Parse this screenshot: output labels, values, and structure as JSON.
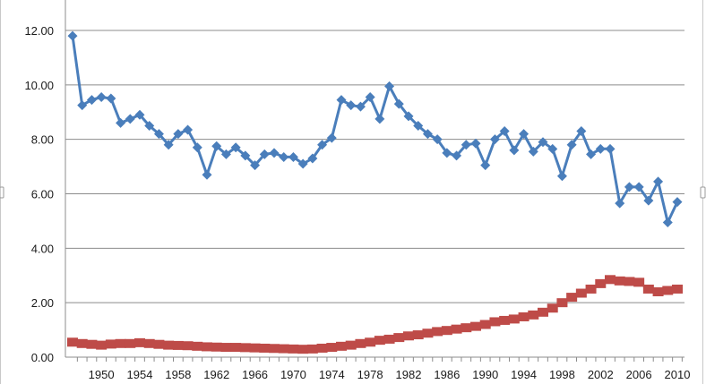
{
  "chart_data": {
    "type": "line",
    "title": "",
    "xlabel": "",
    "ylabel": "",
    "ylim": [
      0,
      12
    ],
    "y_ticks": [
      "0.00",
      "2.00",
      "4.00",
      "6.00",
      "8.00",
      "10.00",
      "12.00"
    ],
    "x_tick_labels": [
      "1950",
      "1954",
      "1958",
      "1962",
      "1966",
      "1970",
      "1974",
      "1978",
      "1982",
      "1986",
      "1990",
      "1994",
      "1998",
      "2002",
      "2006",
      "2010"
    ],
    "x": [
      1947,
      1948,
      1949,
      1950,
      1951,
      1952,
      1953,
      1954,
      1955,
      1956,
      1957,
      1958,
      1959,
      1960,
      1961,
      1962,
      1963,
      1964,
      1965,
      1966,
      1967,
      1968,
      1969,
      1970,
      1971,
      1972,
      1973,
      1974,
      1975,
      1976,
      1977,
      1978,
      1979,
      1980,
      1981,
      1982,
      1983,
      1984,
      1985,
      1986,
      1987,
      1988,
      1989,
      1990,
      1991,
      1992,
      1993,
      1994,
      1995,
      1996,
      1997,
      1998,
      1999,
      2000,
      2001,
      2002,
      2003,
      2004,
      2005,
      2006,
      2007,
      2008,
      2009,
      2010
    ],
    "grid": true,
    "legend": "none",
    "series": [
      {
        "color": "#4a7ebb",
        "marker": "diamond",
        "values": [
          11.8,
          9.25,
          9.45,
          9.55,
          9.5,
          8.6,
          8.75,
          8.9,
          8.5,
          8.2,
          7.8,
          8.2,
          8.35,
          7.7,
          6.7,
          7.75,
          7.45,
          7.7,
          7.4,
          7.05,
          7.45,
          7.5,
          7.35,
          7.35,
          7.1,
          7.3,
          7.8,
          8.05,
          9.45,
          9.25,
          9.2,
          9.55,
          8.75,
          9.95,
          9.3,
          8.85,
          8.5,
          8.2,
          8.0,
          7.5,
          7.4,
          7.8,
          7.85,
          7.05,
          8.0,
          8.3,
          7.6,
          8.2,
          7.55,
          7.9,
          7.65,
          6.65,
          7.8,
          8.3,
          7.45,
          7.65,
          7.65,
          5.65,
          6.25,
          6.25,
          5.75,
          6.45,
          4.95,
          5.7
        ]
      },
      {
        "color": "#be4b48",
        "marker": "square",
        "values": [
          0.55,
          0.5,
          0.47,
          0.44,
          0.48,
          0.5,
          0.5,
          0.53,
          0.5,
          0.47,
          0.44,
          0.43,
          0.42,
          0.4,
          0.38,
          0.37,
          0.36,
          0.36,
          0.35,
          0.34,
          0.33,
          0.32,
          0.31,
          0.3,
          0.29,
          0.3,
          0.33,
          0.36,
          0.4,
          0.44,
          0.5,
          0.55,
          0.62,
          0.66,
          0.72,
          0.78,
          0.82,
          0.88,
          0.94,
          0.98,
          1.03,
          1.08,
          1.13,
          1.2,
          1.3,
          1.35,
          1.4,
          1.48,
          1.55,
          1.65,
          1.8,
          2.0,
          2.2,
          2.35,
          2.5,
          2.7,
          2.85,
          2.8,
          2.78,
          2.75,
          2.5,
          2.4,
          2.45,
          2.5
        ]
      }
    ]
  }
}
